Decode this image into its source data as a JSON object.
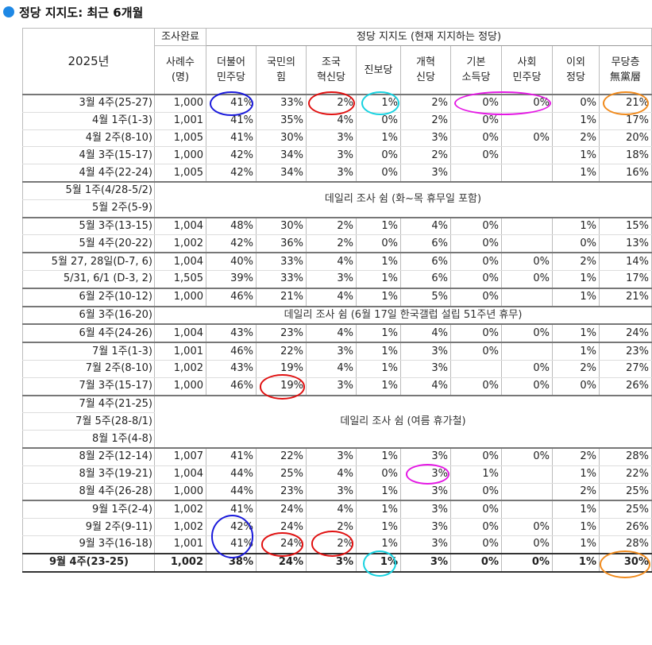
{
  "title": "정당 지지도: 최근 6개월",
  "header": {
    "year": "2025년",
    "sample_line1": "조사완료",
    "sample_line2": "사례수",
    "sample_line3": "(명)",
    "group_title": "정당 지지도 (현재 지지하는 정당)",
    "parties": [
      {
        "l1": "더불어",
        "l2": "민주당"
      },
      {
        "l1": "국민의",
        "l2": "힘"
      },
      {
        "l1": "조국",
        "l2": "혁신당"
      },
      {
        "l1": "진보당",
        "l2": ""
      },
      {
        "l1": "개혁",
        "l2": "신당"
      },
      {
        "l1": "기본",
        "l2": "소득당"
      },
      {
        "l1": "사회",
        "l2": "민주당"
      },
      {
        "l1": "이외",
        "l2": "정당"
      },
      {
        "l1": "무당층",
        "l2": "無黨層"
      }
    ]
  },
  "rows": [
    {
      "period": "3월 4주(25-27)",
      "n": "1,000",
      "v": [
        "41%",
        "33%",
        "2%",
        "1%",
        "2%",
        "0%",
        "0%",
        "0%",
        "21%"
      ]
    },
    {
      "period": "4월 1주(1-3)",
      "n": "1,001",
      "v": [
        "41%",
        "35%",
        "4%",
        "0%",
        "2%",
        "0%",
        "",
        "1%",
        "17%"
      ]
    },
    {
      "period": "4월 2주(8-10)",
      "n": "1,005",
      "v": [
        "41%",
        "30%",
        "3%",
        "1%",
        "3%",
        "0%",
        "0%",
        "2%",
        "20%"
      ]
    },
    {
      "period": "4월 3주(15-17)",
      "n": "1,000",
      "v": [
        "42%",
        "34%",
        "3%",
        "0%",
        "2%",
        "0%",
        "",
        "1%",
        "18%"
      ]
    },
    {
      "period": "4월 4주(22-24)",
      "n": "1,005",
      "v": [
        "42%",
        "34%",
        "3%",
        "0%",
        "3%",
        "",
        "",
        "1%",
        "16%"
      ]
    },
    {
      "period": "5월 1주(4/28-5/2)",
      "rest_note": "데일리 조사 쉼 (화~목 휴무일 포함)"
    },
    {
      "period": "5월 2주(5-9)"
    },
    {
      "period": "5월 3주(13-15)",
      "n": "1,004",
      "v": [
        "48%",
        "30%",
        "2%",
        "1%",
        "4%",
        "0%",
        "",
        "1%",
        "15%"
      ]
    },
    {
      "period": "5월 4주(20-22)",
      "n": "1,002",
      "v": [
        "42%",
        "36%",
        "2%",
        "0%",
        "6%",
        "0%",
        "",
        "0%",
        "13%"
      ]
    },
    {
      "period": "5월 27, 28일(D-7, 6)",
      "n": "1,004",
      "v": [
        "40%",
        "33%",
        "4%",
        "1%",
        "6%",
        "0%",
        "0%",
        "2%",
        "14%"
      ]
    },
    {
      "period": "5/31, 6/1 (D-3, 2)",
      "n": "1,505",
      "v": [
        "39%",
        "33%",
        "3%",
        "1%",
        "6%",
        "0%",
        "0%",
        "1%",
        "17%"
      ]
    },
    {
      "period": "6월 2주(10-12)",
      "n": "1,000",
      "v": [
        "46%",
        "21%",
        "4%",
        "1%",
        "5%",
        "0%",
        "",
        "1%",
        "21%"
      ]
    },
    {
      "period": "6월 3주(16-20)",
      "rest_note": "데일리 조사 쉼 (6월 17일 한국갤럽 설립 51주년 휴무)"
    },
    {
      "period": "6월 4주(24-26)",
      "n": "1,004",
      "v": [
        "43%",
        "23%",
        "4%",
        "1%",
        "4%",
        "0%",
        "0%",
        "1%",
        "24%"
      ]
    },
    {
      "period": "7월 1주(1-3)",
      "n": "1,001",
      "v": [
        "46%",
        "22%",
        "3%",
        "1%",
        "3%",
        "0%",
        "",
        "1%",
        "23%"
      ]
    },
    {
      "period": "7월 2주(8-10)",
      "n": "1,002",
      "v": [
        "43%",
        "19%",
        "4%",
        "1%",
        "3%",
        "",
        "0%",
        "2%",
        "27%"
      ]
    },
    {
      "period": "7월 3주(15-17)",
      "n": "1,000",
      "v": [
        "46%",
        "19%",
        "3%",
        "1%",
        "4%",
        "0%",
        "0%",
        "0%",
        "26%"
      ]
    },
    {
      "period": "7월 4주(21-25)",
      "rest_note": "데일리 조사 쉼 (여름 휴가철)"
    },
    {
      "period": "7월 5주(28-8/1)"
    },
    {
      "period": "8월 1주(4-8)"
    },
    {
      "period": "8월 2주(12-14)",
      "n": "1,007",
      "v": [
        "41%",
        "22%",
        "3%",
        "1%",
        "3%",
        "0%",
        "0%",
        "2%",
        "28%"
      ]
    },
    {
      "period": "8월 3주(19-21)",
      "n": "1,004",
      "v": [
        "44%",
        "25%",
        "4%",
        "0%",
        "3%",
        "1%",
        "",
        "1%",
        "22%"
      ]
    },
    {
      "period": "8월 4주(26-28)",
      "n": "1,000",
      "v": [
        "44%",
        "23%",
        "3%",
        "1%",
        "3%",
        "0%",
        "",
        "2%",
        "25%"
      ]
    },
    {
      "period": "9월 1주(2-4)",
      "n": "1,002",
      "v": [
        "41%",
        "24%",
        "4%",
        "1%",
        "3%",
        "0%",
        "",
        "1%",
        "25%"
      ]
    },
    {
      "period": "9월 2주(9-11)",
      "n": "1,002",
      "v": [
        "42%",
        "24%",
        "2%",
        "1%",
        "3%",
        "0%",
        "0%",
        "1%",
        "26%"
      ]
    },
    {
      "period": "9월 3주(16-18)",
      "n": "1,001",
      "v": [
        "41%",
        "24%",
        "2%",
        "1%",
        "3%",
        "0%",
        "0%",
        "1%",
        "28%"
      ]
    },
    {
      "period": "9월 4주(23-25)",
      "n": "1,002",
      "v": [
        "38%",
        "24%",
        "3%",
        "1%",
        "3%",
        "0%",
        "0%",
        "1%",
        "30%"
      ]
    }
  ],
  "annotation_colors": {
    "blue": "#1a1adb",
    "red": "#e01010",
    "cyan": "#18d2e0",
    "magenta": "#e418e4",
    "orange": "#f08a1c"
  }
}
